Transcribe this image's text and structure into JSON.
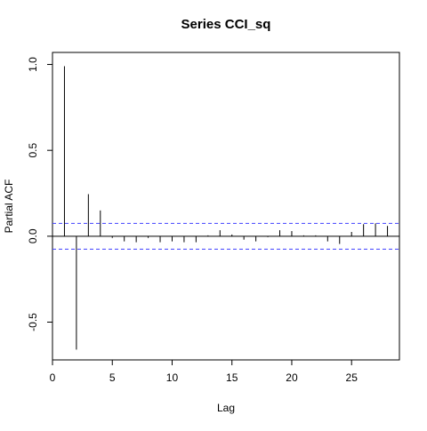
{
  "chart_data": {
    "type": "bar",
    "title": "Series  CCI_sq",
    "xlabel": "Lag",
    "ylabel": "Partial ACF",
    "xlim": [
      0,
      29
    ],
    "ylim": [
      -0.72,
      1.07
    ],
    "x_ticks": [
      0,
      5,
      10,
      15,
      20,
      25
    ],
    "y_ticks": [
      -0.5,
      0.0,
      0.5,
      1.0
    ],
    "y_tick_labels": [
      "-0.5",
      "0.0",
      "0.5",
      "1.0"
    ],
    "confidence_bounds": [
      0.075,
      -0.075
    ],
    "confidence_color": "#4040ff",
    "lags": [
      1,
      2,
      3,
      4,
      5,
      6,
      7,
      8,
      9,
      10,
      11,
      12,
      13,
      14,
      15,
      16,
      17,
      18,
      19,
      20,
      21,
      22,
      23,
      24,
      25,
      26,
      27,
      28
    ],
    "values": [
      0.99,
      -0.66,
      0.245,
      0.15,
      -0.01,
      -0.03,
      -0.035,
      -0.01,
      -0.035,
      -0.03,
      -0.035,
      -0.035,
      0.005,
      0.035,
      0.01,
      -0.02,
      -0.03,
      -0.005,
      0.035,
      0.03,
      0.005,
      0.005,
      -0.03,
      -0.045,
      0.025,
      0.07,
      0.075,
      0.06
    ]
  }
}
